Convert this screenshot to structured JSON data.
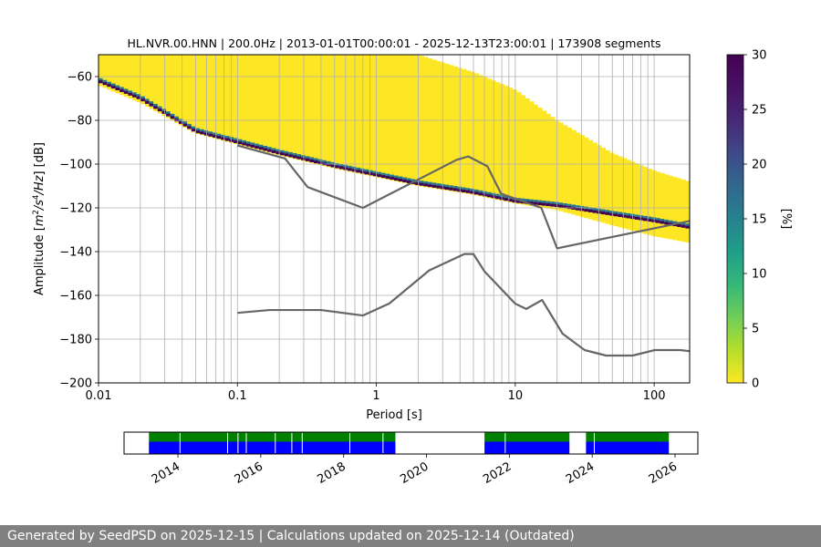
{
  "chart_data": [
    {
      "type": "heatmap",
      "title": "HL.NVR.00.HNN | 200.0Hz | 2013-01-01T00:00:01 - 2025-12-13T23:00:01 | 173908 segments",
      "xlabel": "Period [s]",
      "ylabel": "Amplitude [m²/s⁴/Hz] [dB]",
      "x_scale": "log",
      "xlim": [
        0.01,
        180
      ],
      "ylim": [
        -200,
        -50
      ],
      "x_ticks": [
        "0.01",
        "0.1",
        "1",
        "10",
        "100"
      ],
      "x_tick_values": [
        0.01,
        0.1,
        1,
        10,
        100
      ],
      "y_ticks": [
        "−60",
        "−80",
        "−100",
        "−120",
        "−140",
        "−160",
        "−180",
        "−200"
      ],
      "y_tick_values": [
        -60,
        -80,
        -100,
        -120,
        -140,
        -160,
        -180,
        -200
      ],
      "grid": true,
      "colormap": "viridis",
      "colorbar": {
        "label": "[%]",
        "min": 0,
        "max": 30,
        "ticks": [
          "0",
          "5",
          "10",
          "15",
          "20",
          "25",
          "30"
        ],
        "tick_values": [
          0,
          5,
          10,
          15,
          20,
          25,
          30
        ]
      },
      "mode_line": {
        "x": [
          0.01,
          0.02,
          0.05,
          0.1,
          0.2,
          0.5,
          1,
          2,
          5,
          10,
          20,
          50,
          100,
          180
        ],
        "y": [
          -62,
          -70,
          -85,
          -90,
          -95,
          -101,
          -105,
          -109,
          -113,
          -117,
          -119,
          -123,
          -126,
          -129
        ]
      },
      "upper_band": {
        "x": [
          0.01,
          0.02,
          0.05,
          0.1,
          0.2,
          0.5,
          1,
          2,
          5,
          10,
          20,
          50,
          100,
          180
        ],
        "y": [
          -50,
          -50,
          -50,
          -50,
          -50,
          -50,
          -50,
          -50,
          -58,
          -66,
          -80,
          -95,
          -103,
          -108
        ]
      },
      "lower_band": {
        "x": [
          0.01,
          0.02,
          0.05,
          0.1,
          0.2,
          0.5,
          1,
          2,
          5,
          10,
          20,
          50,
          100,
          180
        ],
        "y": [
          -64,
          -72,
          -86,
          -91,
          -96,
          -102,
          -106,
          -110,
          -114,
          -118,
          -121,
          -128,
          -133,
          -136
        ]
      },
      "nhnm": {
        "name": "NHNM",
        "x": [
          0.1,
          0.22,
          0.32,
          0.8,
          3.8,
          4.6,
          6.3,
          7.9,
          15.4,
          20,
          180
        ],
        "y": [
          -91.5,
          -97.4,
          -110.5,
          -120,
          -98,
          -96.5,
          -101,
          -113.5,
          -120,
          -138.5,
          -126
        ]
      },
      "nlnm": {
        "name": "NLNM",
        "x": [
          0.1,
          0.17,
          0.4,
          0.8,
          1.24,
          2.4,
          4.3,
          5,
          6,
          10,
          12,
          15.6,
          21.9,
          31.6,
          45,
          70,
          101,
          154,
          180
        ],
        "y": [
          -168,
          -166.7,
          -166.7,
          -169.2,
          -163.7,
          -148.6,
          -141.1,
          -141.1,
          -149,
          -163.8,
          -166.2,
          -162.1,
          -177.5,
          -185,
          -187.5,
          -187.5,
          -185,
          -185,
          -185.5
        ]
      }
    },
    {
      "type": "timeline",
      "x_ticks": [
        "2014",
        "2016",
        "2018",
        "2020",
        "2022",
        "2024",
        "2026"
      ],
      "x_tick_values": [
        2014,
        2016,
        2018,
        2020,
        2022,
        2024,
        2026
      ],
      "xlim": [
        2012.7,
        2026.55
      ],
      "colors": {
        "upper": "#008000",
        "lower": "#0000ff"
      },
      "coverage": [
        [
          2013.3,
          2019.25
        ],
        [
          2021.4,
          2023.45
        ],
        [
          2023.85,
          2025.85
        ]
      ],
      "gaps": [
        2014.05,
        2015.2,
        2015.45,
        2015.65,
        2016.35,
        2016.75,
        2017.0,
        2018.15,
        2018.95,
        2021.9,
        2024.05
      ]
    }
  ],
  "footer": {
    "text": "Generated by SeedPSD on 2025-12-15 | Calculations updated on 2025-12-14 (Outdated)"
  }
}
